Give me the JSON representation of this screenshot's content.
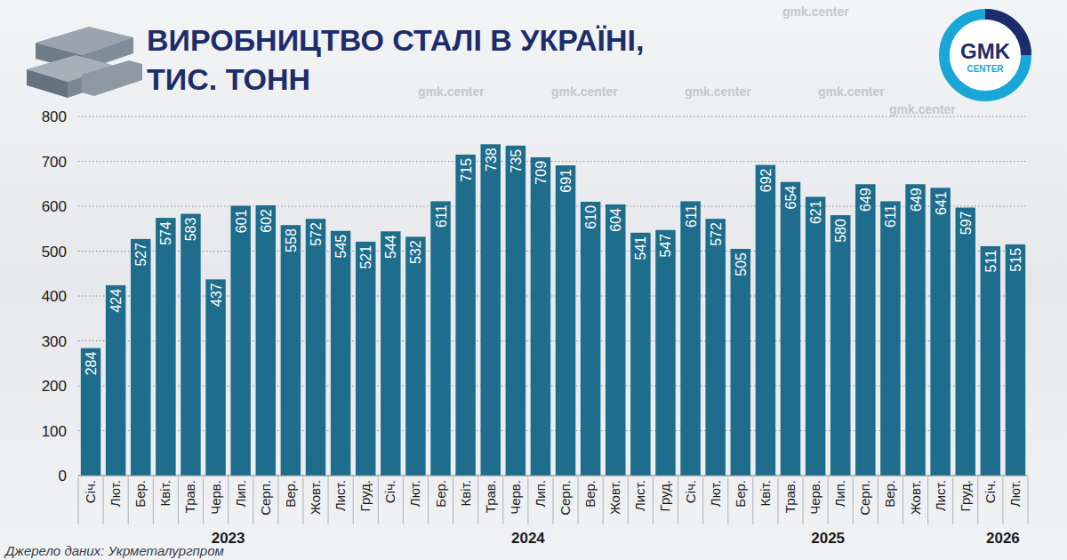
{
  "chart_data": {
    "type": "bar",
    "title": "ВИРОБНИЦТВО СТАЛІ В УКРАЇНІ, ТИС. ТОНН",
    "source": "Джерело даних: Укрметалургпром",
    "logo": [
      "GMK",
      "CENTER"
    ],
    "watermark": "gmk.center",
    "categories": [
      "Січ.",
      "Лют.",
      "Бер.",
      "Квіт.",
      "Трав.",
      "Черв.",
      "Лип.",
      "Серп.",
      "Вер.",
      "Жовт.",
      "Лист.",
      "Груд.",
      "Січ.",
      "Лют.",
      "Бер.",
      "Квіт.",
      "Трав.",
      "Черв.",
      "Лип.",
      "Серп.",
      "Вер.",
      "Жовт.",
      "Лист.",
      "Груд.",
      "Січ.",
      "Лют.",
      "Бер.",
      "Квіт.",
      "Трав.",
      "Черв.",
      "Лип.",
      "Серп.",
      "Вер.",
      "Жовт.",
      "Лист.",
      "Груд.",
      "Січ.",
      "Лют."
    ],
    "group_labels": [
      "2023",
      "2024",
      "2025",
      "2026"
    ],
    "values": [
      284,
      424,
      527,
      574,
      583,
      437,
      601,
      602,
      558,
      572,
      545,
      521,
      544,
      532,
      611,
      715,
      738,
      735,
      709,
      691,
      610,
      604,
      541,
      547,
      611,
      572,
      505,
      692,
      654,
      621,
      580,
      649,
      611,
      649,
      641,
      597,
      511,
      515
    ],
    "color": "#1f6d8c",
    "ylim": [
      0,
      800
    ],
    "yticks": [
      0,
      100,
      200,
      300,
      400,
      500,
      600,
      700,
      800
    ],
    "grid": true,
    "data_labels": true
  }
}
